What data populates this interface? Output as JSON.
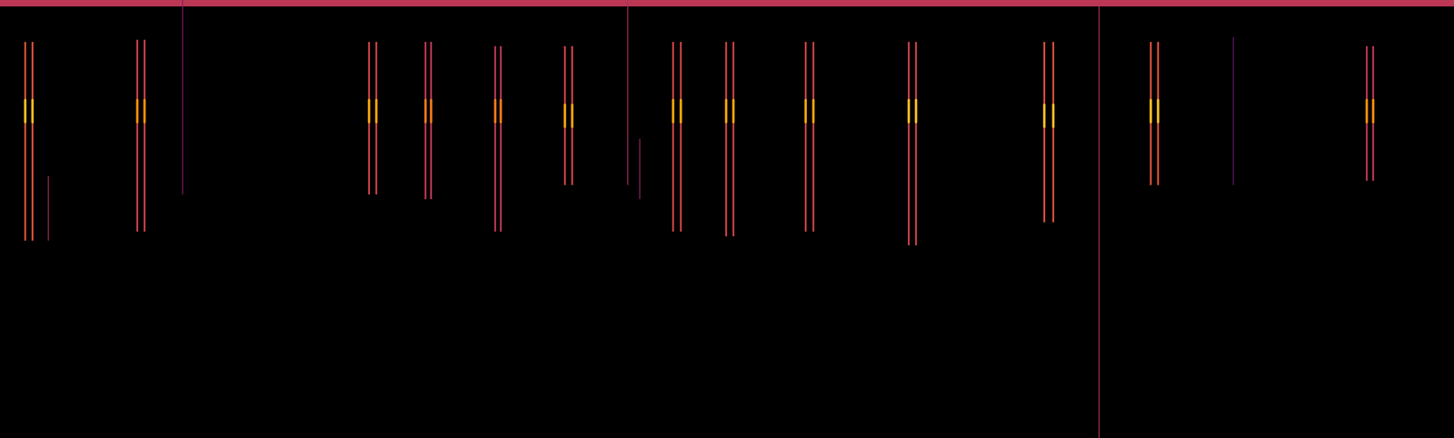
{
  "chart_data": {
    "type": "spectrogram",
    "xlim": [
      0,
      1568
    ],
    "ylim": [
      0,
      473
    ],
    "tick_labels": false,
    "calls": [
      {
        "strokes": [
          27,
          35
        ],
        "f_low": 213,
        "f_high": 428,
        "peak": 353,
        "intensity": 0.6,
        "peak_intensity": 0.85
      },
      {
        "strokes": [
          148,
          156
        ],
        "f_low": 223,
        "f_high": 430,
        "peak": 353,
        "intensity": 0.55,
        "peak_intensity": 0.75
      },
      {
        "strokes": [
          398,
          406
        ],
        "f_low": 263,
        "f_high": 428,
        "peak": 353,
        "intensity": 0.55,
        "peak_intensity": 0.8
      },
      {
        "strokes": [
          459,
          465
        ],
        "f_low": 258,
        "f_high": 428,
        "peak": 353,
        "intensity": 0.5,
        "peak_intensity": 0.7
      },
      {
        "strokes": [
          534,
          540
        ],
        "f_low": 223,
        "f_high": 423,
        "peak": 353,
        "intensity": 0.5,
        "peak_intensity": 0.7
      },
      {
        "strokes": [
          609,
          617
        ],
        "f_low": 273,
        "f_high": 423,
        "peak": 348,
        "intensity": 0.55,
        "peak_intensity": 0.8
      },
      {
        "strokes": [
          726,
          734
        ],
        "f_low": 223,
        "f_high": 428,
        "peak": 353,
        "intensity": 0.55,
        "peak_intensity": 0.8
      },
      {
        "strokes": [
          783,
          791
        ],
        "f_low": 218,
        "f_high": 428,
        "peak": 353,
        "intensity": 0.55,
        "peak_intensity": 0.8
      },
      {
        "strokes": [
          869,
          877
        ],
        "f_low": 223,
        "f_high": 428,
        "peak": 353,
        "intensity": 0.55,
        "peak_intensity": 0.8
      },
      {
        "strokes": [
          980,
          988
        ],
        "f_low": 208,
        "f_high": 428,
        "peak": 353,
        "intensity": 0.55,
        "peak_intensity": 0.85
      },
      {
        "strokes": [
          1126,
          1136
        ],
        "f_low": 233,
        "f_high": 428,
        "peak": 348,
        "intensity": 0.6,
        "peak_intensity": 0.85
      },
      {
        "strokes": [
          1241,
          1249
        ],
        "f_low": 273,
        "f_high": 428,
        "peak": 353,
        "intensity": 0.6,
        "peak_intensity": 0.85
      },
      {
        "strokes": [
          1474,
          1481
        ],
        "f_low": 278,
        "f_high": 423,
        "peak": 353,
        "intensity": 0.5,
        "peak_intensity": 0.75
      }
    ],
    "clicks": [
      {
        "x": 52,
        "f_low": 213,
        "f_high": 283,
        "intensity": 0.45
      },
      {
        "x": 197,
        "f_low": 263,
        "f_high": 473,
        "intensity": 0.35
      },
      {
        "x": 677,
        "f_low": 273,
        "f_high": 473,
        "intensity": 0.45
      },
      {
        "x": 690,
        "f_low": 258,
        "f_high": 323,
        "intensity": 0.4
      },
      {
        "x": 1185,
        "f_low": 0,
        "f_high": 473,
        "intensity": 0.5
      },
      {
        "x": 1330,
        "f_low": 273,
        "f_high": 433,
        "intensity": 0.3
      }
    ],
    "band": {
      "f_low": 466,
      "f_high": 473,
      "intensity": 0.5
    }
  }
}
